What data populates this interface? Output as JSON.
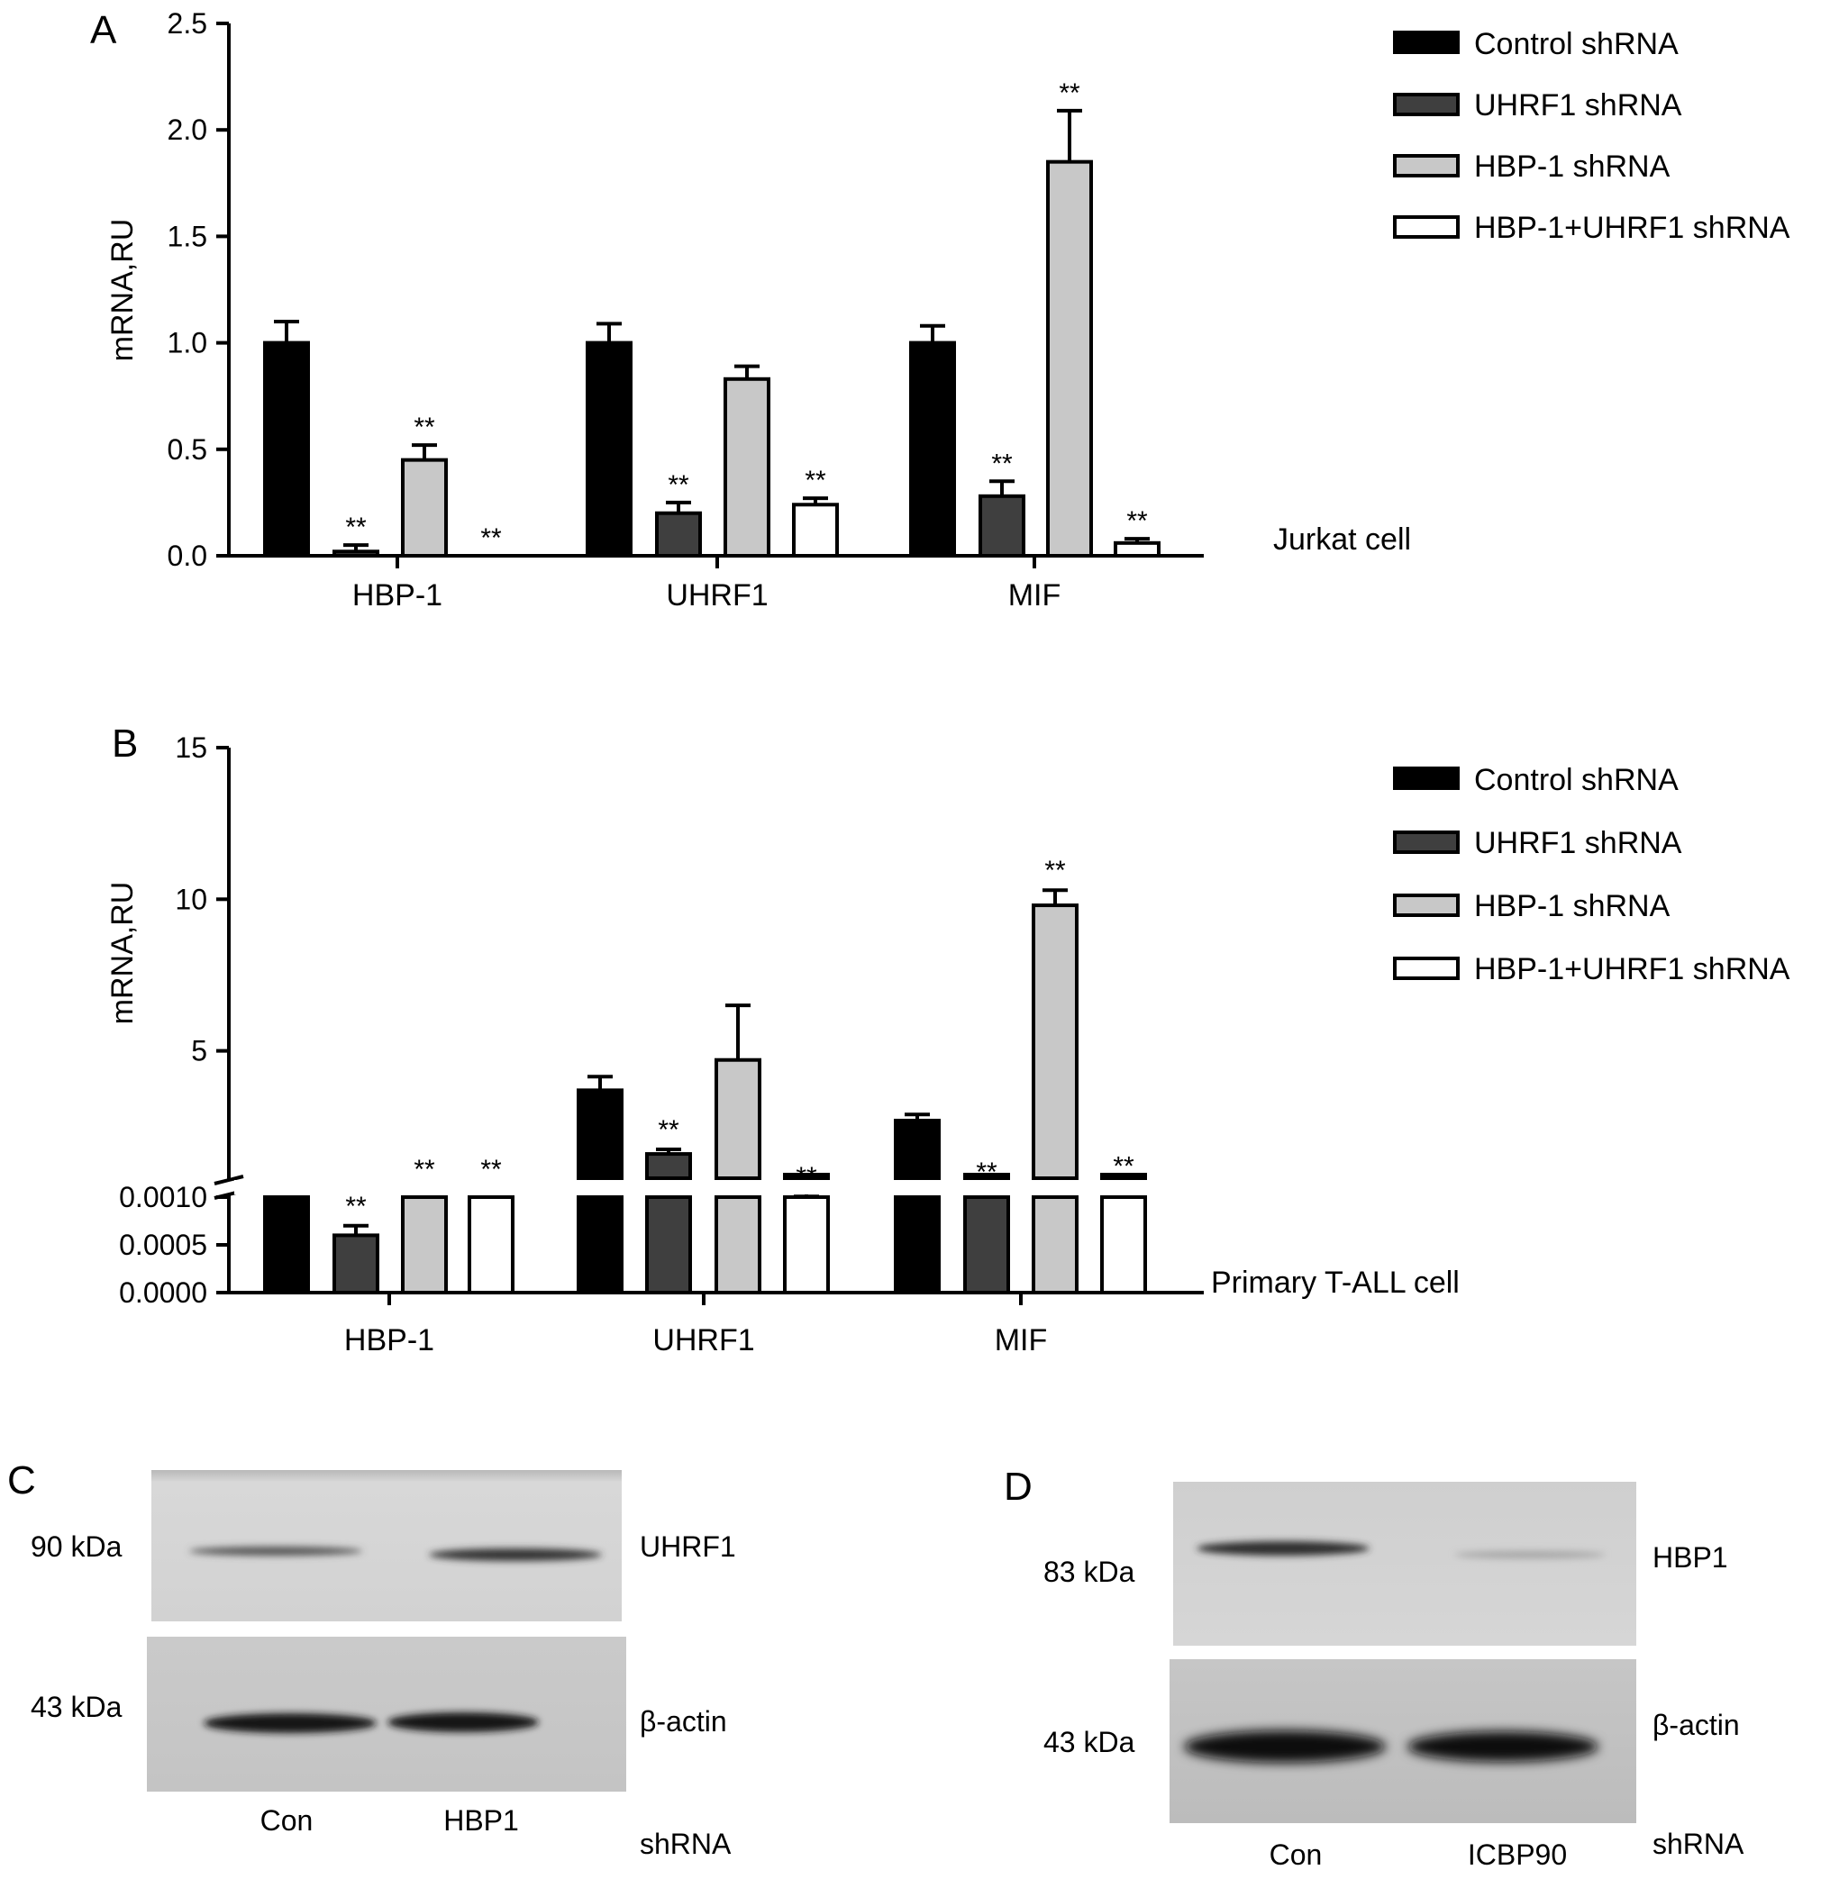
{
  "panels": [
    {
      "letter": "A",
      "cell_label": "Jurkat cell",
      "legend": [
        "Control shRNA",
        "UHRF1 shRNA",
        "HBP-1 shRNA",
        "HBP-1+UHRF1 shRNA"
      ]
    },
    {
      "letter": "B",
      "cell_label": "Primary T-ALL cell",
      "legend": [
        "Control shRNA",
        "UHRF1 shRNA",
        "HBP-1 shRNA",
        "HBP-1+UHRF1 shRNA"
      ]
    }
  ],
  "chart_data": [
    {
      "type": "bar",
      "panel": "A",
      "title": "",
      "xlabel": "",
      "ylabel": "mRNA,RU",
      "ylim": [
        0,
        2.5
      ],
      "yticks": [
        "0.0",
        "0.5",
        "1.0",
        "1.5",
        "2.0",
        "2.5"
      ],
      "ytick_values": [
        0,
        0.5,
        1.0,
        1.5,
        2.0,
        2.5
      ],
      "categories": [
        "HBP-1",
        "UHRF1",
        "MIF"
      ],
      "series": [
        {
          "name": "Control shRNA",
          "values": [
            1.0,
            1.0,
            1.0
          ],
          "errors": [
            0.1,
            0.09,
            0.08
          ],
          "sig": [
            "",
            "",
            ""
          ],
          "fill": "#000000"
        },
        {
          "name": "UHRF1 shRNA",
          "values": [
            0.02,
            0.2,
            0.28
          ],
          "errors": [
            0.03,
            0.05,
            0.07
          ],
          "sig": [
            "**",
            "**",
            "**"
          ],
          "fill": "#3f3f3f"
        },
        {
          "name": "HBP-1 shRNA",
          "values": [
            0.45,
            0.83,
            1.85
          ],
          "errors": [
            0.07,
            0.06,
            0.24
          ],
          "sig": [
            "**",
            "",
            "**"
          ],
          "fill": "#c8c8c8"
        },
        {
          "name": "HBP-1+UHRF1 shRNA",
          "values": [
            0.0,
            0.24,
            0.06
          ],
          "errors": [
            0.0,
            0.03,
            0.02
          ],
          "sig": [
            "**",
            "**",
            "**"
          ],
          "fill": "#ffffff"
        }
      ]
    },
    {
      "type": "bar",
      "panel": "B",
      "title": "",
      "xlabel": "",
      "ylabel": "mRNA,RU",
      "broken_axis": true,
      "lower_ylim": [
        0,
        0.001
      ],
      "upper_ylim": [
        0,
        15
      ],
      "upper_visible_from": 0.8,
      "yticks_lower": [
        "0.0000",
        "0.0005",
        "0.0010"
      ],
      "ytick_values_lower": [
        0,
        0.0005,
        0.001
      ],
      "yticks_upper": [
        "5",
        "10",
        "15"
      ],
      "ytick_values_upper": [
        5,
        10,
        15
      ],
      "categories": [
        "HBP-1",
        "UHRF1",
        "MIF"
      ],
      "series": [
        {
          "name": "Control shRNA",
          "values": [
            0.001,
            3.7,
            2.7
          ],
          "errors": [
            0,
            0.45,
            0.2
          ],
          "sig": [
            "",
            "",
            ""
          ],
          "fill": "#000000"
        },
        {
          "name": "UHRF1 shRNA",
          "values": [
            0.0006,
            1.6,
            0.2
          ],
          "errors": [
            0.0001,
            0.15,
            0.15
          ],
          "sig": [
            "**",
            "**",
            "**"
          ],
          "fill": "#3f3f3f"
        },
        {
          "name": "HBP-1 shRNA",
          "values": [
            0.001,
            4.7,
            9.8
          ],
          "errors": [
            0,
            1.8,
            0.5
          ],
          "sig": [
            "**",
            "",
            "**"
          ],
          "fill": "#c8c8c8"
        },
        {
          "name": "HBP-1+UHRF1 shRNA",
          "values": [
            0.001,
            0.1,
            0.35
          ],
          "errors": [
            0,
            0.1,
            0.2
          ],
          "sig": [
            "**",
            "**",
            "**"
          ],
          "fill": "#ffffff"
        }
      ]
    }
  ],
  "blots": [
    {
      "letter": "C",
      "bands": [
        {
          "kda": "90 kDa",
          "protein": "UHRF1"
        },
        {
          "kda": "43 kDa",
          "protein": "β-actin"
        }
      ],
      "lanes": [
        "Con",
        "HBP1"
      ],
      "footer": "shRNA"
    },
    {
      "letter": "D",
      "bands": [
        {
          "kda": "83 kDa",
          "protein": "HBP1"
        },
        {
          "kda": "43 kDa",
          "protein": "β-actin"
        }
      ],
      "lanes": [
        "Con",
        "ICBP90"
      ],
      "footer": "shRNA"
    }
  ]
}
